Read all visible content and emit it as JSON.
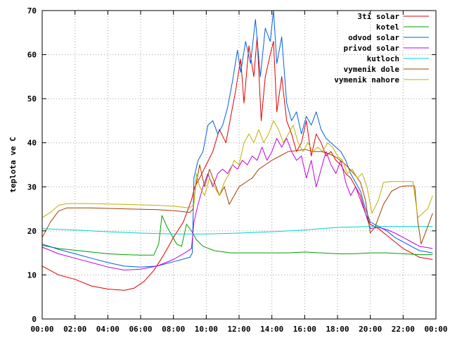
{
  "chart_data": {
    "type": "line",
    "title": "",
    "xlabel": "",
    "ylabel": "teplota ve C",
    "xlim": [
      0,
      24
    ],
    "ylim": [
      0,
      70
    ],
    "x_ticks": [
      "00:00",
      "02:00",
      "04:00",
      "06:00",
      "08:00",
      "10:00",
      "12:00",
      "14:00",
      "16:00",
      "18:00",
      "20:00",
      "22:00",
      "00:00"
    ],
    "y_ticks": [
      "0",
      "10",
      "20",
      "30",
      "40",
      "50",
      "60",
      "70"
    ],
    "grid": true,
    "legend_position": "top-right",
    "series": [
      {
        "name": "3ti solar",
        "color": "#e00000",
        "points": [
          [
            0,
            12
          ],
          [
            1,
            10
          ],
          [
            2,
            9
          ],
          [
            3,
            7.5
          ],
          [
            4,
            6.8
          ],
          [
            5,
            6.5
          ],
          [
            5.6,
            7
          ],
          [
            6.2,
            8.5
          ],
          [
            6.8,
            11
          ],
          [
            7.4,
            14.5
          ],
          [
            8,
            18.5
          ],
          [
            8.6,
            22
          ],
          [
            9.1,
            27
          ],
          [
            9.3,
            30
          ],
          [
            9.6,
            32
          ],
          [
            10,
            35
          ],
          [
            10.4,
            38
          ],
          [
            10.8,
            43
          ],
          [
            11.2,
            40
          ],
          [
            11.5,
            46
          ],
          [
            11.8,
            52
          ],
          [
            12.1,
            59
          ],
          [
            12.3,
            49
          ],
          [
            12.6,
            62
          ],
          [
            12.9,
            55
          ],
          [
            13.1,
            64
          ],
          [
            13.35,
            45
          ],
          [
            13.6,
            55
          ],
          [
            13.9,
            60
          ],
          [
            14.1,
            63
          ],
          [
            14.3,
            47
          ],
          [
            14.6,
            55
          ],
          [
            14.9,
            45
          ],
          [
            15.2,
            42
          ],
          [
            15.5,
            38
          ],
          [
            15.8,
            40
          ],
          [
            16.1,
            45
          ],
          [
            16.4,
            37
          ],
          [
            16.7,
            42
          ],
          [
            17,
            40
          ],
          [
            17.3,
            37
          ],
          [
            17.6,
            38
          ],
          [
            17.9,
            36
          ],
          [
            18.2,
            35
          ],
          [
            18.5,
            33
          ],
          [
            18.8,
            32
          ],
          [
            19.1,
            30
          ],
          [
            19.4,
            28
          ],
          [
            19.7,
            24
          ],
          [
            20,
            21.5
          ],
          [
            20.5,
            20.5
          ],
          [
            21,
            19
          ],
          [
            21.5,
            17.5
          ],
          [
            22,
            16
          ],
          [
            22.5,
            15
          ],
          [
            23,
            14
          ],
          [
            23.8,
            13.5
          ]
        ]
      },
      {
        "name": "kotel",
        "color": "#00a000",
        "points": [
          [
            0,
            16.7
          ],
          [
            1,
            16
          ],
          [
            2,
            15.6
          ],
          [
            3,
            15.2
          ],
          [
            4,
            14.8
          ],
          [
            5,
            14.6
          ],
          [
            6,
            14.5
          ],
          [
            6.8,
            14.5
          ],
          [
            7.1,
            17
          ],
          [
            7.3,
            23.5
          ],
          [
            7.6,
            21
          ],
          [
            7.9,
            19
          ],
          [
            8.2,
            17
          ],
          [
            8.5,
            16.5
          ],
          [
            8.8,
            21.5
          ],
          [
            9.1,
            20
          ],
          [
            9.4,
            18
          ],
          [
            9.8,
            16.5
          ],
          [
            10.5,
            15.5
          ],
          [
            11.5,
            15
          ],
          [
            13,
            15
          ],
          [
            14,
            15
          ],
          [
            15,
            15
          ],
          [
            16,
            15.2
          ],
          [
            17,
            15
          ],
          [
            18,
            14.8
          ],
          [
            19,
            14.8
          ],
          [
            20,
            15
          ],
          [
            21,
            15
          ],
          [
            22,
            14.8
          ],
          [
            23,
            14.6
          ],
          [
            23.8,
            14.6
          ]
        ]
      },
      {
        "name": "odvod solar",
        "color": "#0060e0",
        "points": [
          [
            0,
            17
          ],
          [
            1,
            15.8
          ],
          [
            2,
            14.8
          ],
          [
            3,
            13.8
          ],
          [
            4,
            12.8
          ],
          [
            5,
            12
          ],
          [
            6,
            11.8
          ],
          [
            7,
            12
          ],
          [
            8,
            13
          ],
          [
            9,
            14
          ],
          [
            9.15,
            15
          ],
          [
            9.25,
            32
          ],
          [
            9.5,
            36
          ],
          [
            9.8,
            38
          ],
          [
            10.1,
            44
          ],
          [
            10.4,
            45
          ],
          [
            10.7,
            42
          ],
          [
            11,
            44
          ],
          [
            11.3,
            48
          ],
          [
            11.6,
            54
          ],
          [
            11.9,
            61
          ],
          [
            12.1,
            56
          ],
          [
            12.4,
            63
          ],
          [
            12.7,
            58
          ],
          [
            13,
            68
          ],
          [
            13.3,
            55
          ],
          [
            13.6,
            66
          ],
          [
            13.9,
            63
          ],
          [
            14.1,
            70
          ],
          [
            14.3,
            58
          ],
          [
            14.6,
            64
          ],
          [
            14.9,
            49
          ],
          [
            15.2,
            45
          ],
          [
            15.5,
            47
          ],
          [
            15.8,
            42
          ],
          [
            16.1,
            46
          ],
          [
            16.4,
            44
          ],
          [
            16.7,
            47
          ],
          [
            17,
            43
          ],
          [
            17.3,
            41
          ],
          [
            17.6,
            40
          ],
          [
            17.9,
            39
          ],
          [
            18.2,
            38
          ],
          [
            18.5,
            36
          ],
          [
            18.8,
            33
          ],
          [
            19.1,
            31
          ],
          [
            19.4,
            29
          ],
          [
            19.7,
            25
          ],
          [
            20,
            22
          ],
          [
            20.5,
            21
          ],
          [
            21,
            20
          ],
          [
            21.5,
            18.5
          ],
          [
            22,
            17.5
          ],
          [
            22.5,
            16.5
          ],
          [
            23,
            15.5
          ],
          [
            23.8,
            15
          ]
        ]
      },
      {
        "name": "privod solar",
        "color": "#c000e0",
        "points": [
          [
            0,
            16.3
          ],
          [
            1,
            14.8
          ],
          [
            2,
            13.8
          ],
          [
            3,
            12.8
          ],
          [
            4,
            11.8
          ],
          [
            5,
            11.1
          ],
          [
            6,
            11.3
          ],
          [
            7,
            12
          ],
          [
            8,
            13.5
          ],
          [
            8.7,
            15
          ],
          [
            9.1,
            16
          ],
          [
            9.25,
            22
          ],
          [
            9.5,
            26
          ],
          [
            9.8,
            30
          ],
          [
            10.1,
            33
          ],
          [
            10.4,
            30
          ],
          [
            10.7,
            33
          ],
          [
            11,
            34
          ],
          [
            11.3,
            33
          ],
          [
            11.6,
            35
          ],
          [
            11.9,
            34
          ],
          [
            12.2,
            36
          ],
          [
            12.5,
            35
          ],
          [
            12.8,
            37
          ],
          [
            13.1,
            36
          ],
          [
            13.4,
            39
          ],
          [
            13.7,
            36
          ],
          [
            14,
            38
          ],
          [
            14.3,
            41
          ],
          [
            14.6,
            39
          ],
          [
            14.9,
            41
          ],
          [
            15.2,
            38
          ],
          [
            15.5,
            36
          ],
          [
            15.8,
            37
          ],
          [
            16.1,
            32
          ],
          [
            16.4,
            36
          ],
          [
            16.7,
            30
          ],
          [
            17,
            34
          ],
          [
            17.3,
            38
          ],
          [
            17.6,
            35
          ],
          [
            17.9,
            33
          ],
          [
            18.2,
            36
          ],
          [
            18.5,
            31
          ],
          [
            18.8,
            28
          ],
          [
            19.1,
            30
          ],
          [
            19.4,
            27
          ],
          [
            19.7,
            24
          ],
          [
            20,
            20.5
          ],
          [
            20.5,
            20.8
          ],
          [
            21,
            20.3
          ],
          [
            21.5,
            19.5
          ],
          [
            22,
            18.5
          ],
          [
            22.5,
            17.5
          ],
          [
            23,
            16.5
          ],
          [
            23.8,
            16
          ]
        ]
      },
      {
        "name": "kutloch",
        "color": "#00d0d0",
        "points": [
          [
            0,
            20.5
          ],
          [
            2,
            20.2
          ],
          [
            4,
            19.8
          ],
          [
            6,
            19.5
          ],
          [
            8,
            19.3
          ],
          [
            10,
            19.3
          ],
          [
            12,
            19.5
          ],
          [
            14,
            19.8
          ],
          [
            16,
            20.2
          ],
          [
            18,
            20.8
          ],
          [
            20,
            21
          ],
          [
            22,
            21
          ],
          [
            23.8,
            21
          ]
        ]
      },
      {
        "name": "vymenik dole",
        "color": "#a04000",
        "points": [
          [
            0,
            18.5
          ],
          [
            0.5,
            22
          ],
          [
            1,
            24.5
          ],
          [
            1.5,
            25.2
          ],
          [
            3,
            25.2
          ],
          [
            5,
            25
          ],
          [
            7,
            24.8
          ],
          [
            8,
            24.6
          ],
          [
            9,
            24.2
          ],
          [
            9.2,
            25
          ],
          [
            9.35,
            30
          ],
          [
            9.6,
            35
          ],
          [
            9.9,
            30
          ],
          [
            10.2,
            34
          ],
          [
            10.5,
            31
          ],
          [
            10.8,
            28
          ],
          [
            11.1,
            30
          ],
          [
            11.4,
            26
          ],
          [
            11.7,
            28
          ],
          [
            12,
            30
          ],
          [
            12.4,
            31
          ],
          [
            12.8,
            32
          ],
          [
            13.2,
            34
          ],
          [
            13.6,
            35
          ],
          [
            14,
            36
          ],
          [
            14.5,
            37
          ],
          [
            15,
            38
          ],
          [
            15.5,
            38.2
          ],
          [
            16,
            38.5
          ],
          [
            16.5,
            38
          ],
          [
            17,
            38
          ],
          [
            17.5,
            37.5
          ],
          [
            18,
            36.5
          ],
          [
            18.5,
            35
          ],
          [
            19,
            33
          ],
          [
            19.4,
            31
          ],
          [
            19.7,
            27
          ],
          [
            20,
            19.5
          ],
          [
            20.3,
            21
          ],
          [
            20.8,
            26
          ],
          [
            21.3,
            29
          ],
          [
            21.8,
            30
          ],
          [
            22.2,
            30.2
          ],
          [
            22.7,
            30.2
          ],
          [
            22.9,
            22
          ],
          [
            23.1,
            17
          ],
          [
            23.4,
            20
          ],
          [
            23.8,
            24
          ]
        ]
      },
      {
        "name": "vymenik nahore",
        "color": "#c0b000",
        "points": [
          [
            0,
            23
          ],
          [
            0.5,
            24.2
          ],
          [
            1,
            25.8
          ],
          [
            1.5,
            26.2
          ],
          [
            3,
            26.2
          ],
          [
            5,
            26
          ],
          [
            7,
            25.8
          ],
          [
            8,
            25.6
          ],
          [
            9,
            25.2
          ],
          [
            9.25,
            26
          ],
          [
            9.4,
            33
          ],
          [
            9.6,
            30
          ],
          [
            9.9,
            28
          ],
          [
            10.2,
            32
          ],
          [
            10.5,
            30
          ],
          [
            10.8,
            28
          ],
          [
            11.1,
            31
          ],
          [
            11.4,
            33
          ],
          [
            11.7,
            36
          ],
          [
            12,
            35
          ],
          [
            12.3,
            40
          ],
          [
            12.6,
            42
          ],
          [
            12.9,
            40
          ],
          [
            13.2,
            43
          ],
          [
            13.5,
            40
          ],
          [
            13.8,
            42
          ],
          [
            14.1,
            45
          ],
          [
            14.4,
            43
          ],
          [
            14.7,
            40
          ],
          [
            15,
            42
          ],
          [
            15.3,
            44
          ],
          [
            15.6,
            40
          ],
          [
            15.9,
            38
          ],
          [
            16.2,
            40
          ],
          [
            16.5,
            38
          ],
          [
            16.8,
            39
          ],
          [
            17.1,
            38
          ],
          [
            17.4,
            40
          ],
          [
            17.7,
            39
          ],
          [
            18,
            37
          ],
          [
            18.3,
            36
          ],
          [
            18.6,
            33
          ],
          [
            18.9,
            34
          ],
          [
            19.2,
            32
          ],
          [
            19.5,
            33
          ],
          [
            19.8,
            30
          ],
          [
            20.1,
            24
          ],
          [
            20.5,
            27
          ],
          [
            20.8,
            31
          ],
          [
            21.3,
            31.2
          ],
          [
            22,
            31.2
          ],
          [
            22.6,
            31.2
          ],
          [
            22.9,
            23
          ],
          [
            23.2,
            24
          ],
          [
            23.5,
            25
          ],
          [
            23.8,
            28
          ]
        ]
      }
    ]
  }
}
